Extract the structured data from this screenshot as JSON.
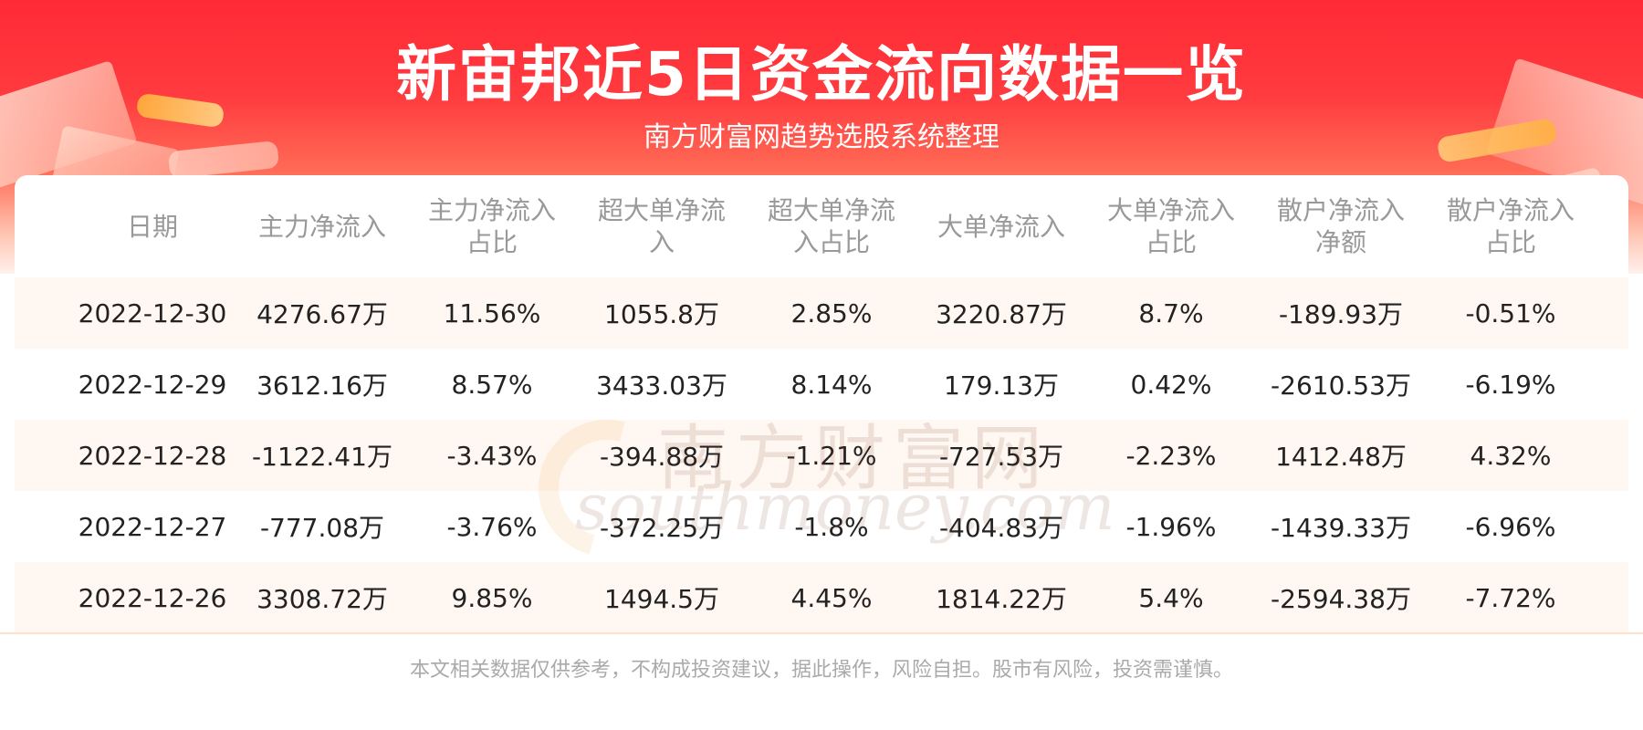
{
  "header": {
    "title": "新宙邦近5日资金流向数据一览",
    "subtitle": "南方财富网趋势选股系统整理"
  },
  "table": {
    "columns": [
      "日期",
      "主力净流入",
      "主力净流入\n占比",
      "超大单净流\n入",
      "超大单净流\n入占比",
      "大单净流入",
      "大单净流入\n占比",
      "散户净流入\n净额",
      "散户净流入\n占比"
    ],
    "rows": [
      [
        "2022-12-30",
        "4276.67万",
        "11.56%",
        "1055.8万",
        "2.85%",
        "3220.87万",
        "8.7%",
        "-189.93万",
        "-0.51%"
      ],
      [
        "2022-12-29",
        "3612.16万",
        "8.57%",
        "3433.03万",
        "8.14%",
        "179.13万",
        "0.42%",
        "-2610.53万",
        "-6.19%"
      ],
      [
        "2022-12-28",
        "-1122.41万",
        "-3.43%",
        "-394.88万",
        "-1.21%",
        "-727.53万",
        "-2.23%",
        "1412.48万",
        "4.32%"
      ],
      [
        "2022-12-27",
        "-777.08万",
        "-3.76%",
        "-372.25万",
        "-1.8%",
        "-404.83万",
        "-1.96%",
        "-1439.33万",
        "-6.96%"
      ],
      [
        "2022-12-26",
        "3308.72万",
        "9.85%",
        "1494.5万",
        "4.45%",
        "1814.22万",
        "5.4%",
        "-2594.38万",
        "-7.72%"
      ]
    ]
  },
  "watermark": {
    "cn": "南方财富网",
    "en": "southmoney.com"
  },
  "footer": {
    "disclaimer": "本文相关数据仅供参考，不构成投资建议，据此操作，风险自担。股市有风险，投资需谨慎。"
  },
  "colors": {
    "banner_red": "#ff2a36",
    "row_stripe": "#fff7f1",
    "header_text": "#999999",
    "body_text": "#222222"
  }
}
